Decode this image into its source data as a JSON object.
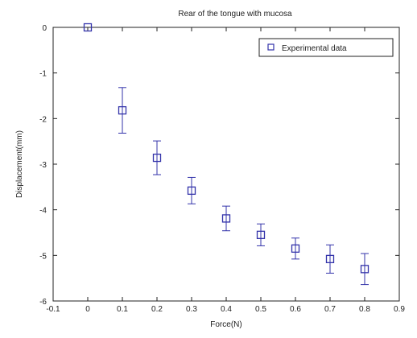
{
  "chart_data": {
    "type": "scatter",
    "title": "Rear of the tongue with mucosa",
    "xlabel": "Force(N)",
    "ylabel": "Displacement(mm)",
    "xlim": [
      -0.1,
      0.9
    ],
    "ylim": [
      -6,
      0
    ],
    "xticks": [
      "-0.1",
      "0",
      "0.1",
      "0.2",
      "0.3",
      "0.4",
      "0.5",
      "0.6",
      "0.7",
      "0.8",
      "0.9"
    ],
    "yticks": [
      "0",
      "-1",
      "-2",
      "-3",
      "-4",
      "-5",
      "-6"
    ],
    "grid": false,
    "legend": {
      "position": "top-right",
      "entries": [
        "Experimental data"
      ]
    },
    "series": [
      {
        "name": "Experimental data",
        "marker": "square",
        "color": "#3333aa",
        "x": [
          0,
          0.1,
          0.2,
          0.3,
          0.4,
          0.5,
          0.6,
          0.7,
          0.8
        ],
        "y": [
          0,
          -1.82,
          -2.86,
          -3.58,
          -4.19,
          -4.55,
          -4.85,
          -5.08,
          -5.3
        ],
        "error_low": [
          0,
          0.5,
          0.37,
          0.29,
          0.27,
          0.24,
          0.23,
          0.31,
          0.34
        ],
        "error_high": [
          0,
          0.5,
          0.37,
          0.29,
          0.27,
          0.24,
          0.23,
          0.31,
          0.34
        ]
      }
    ]
  }
}
